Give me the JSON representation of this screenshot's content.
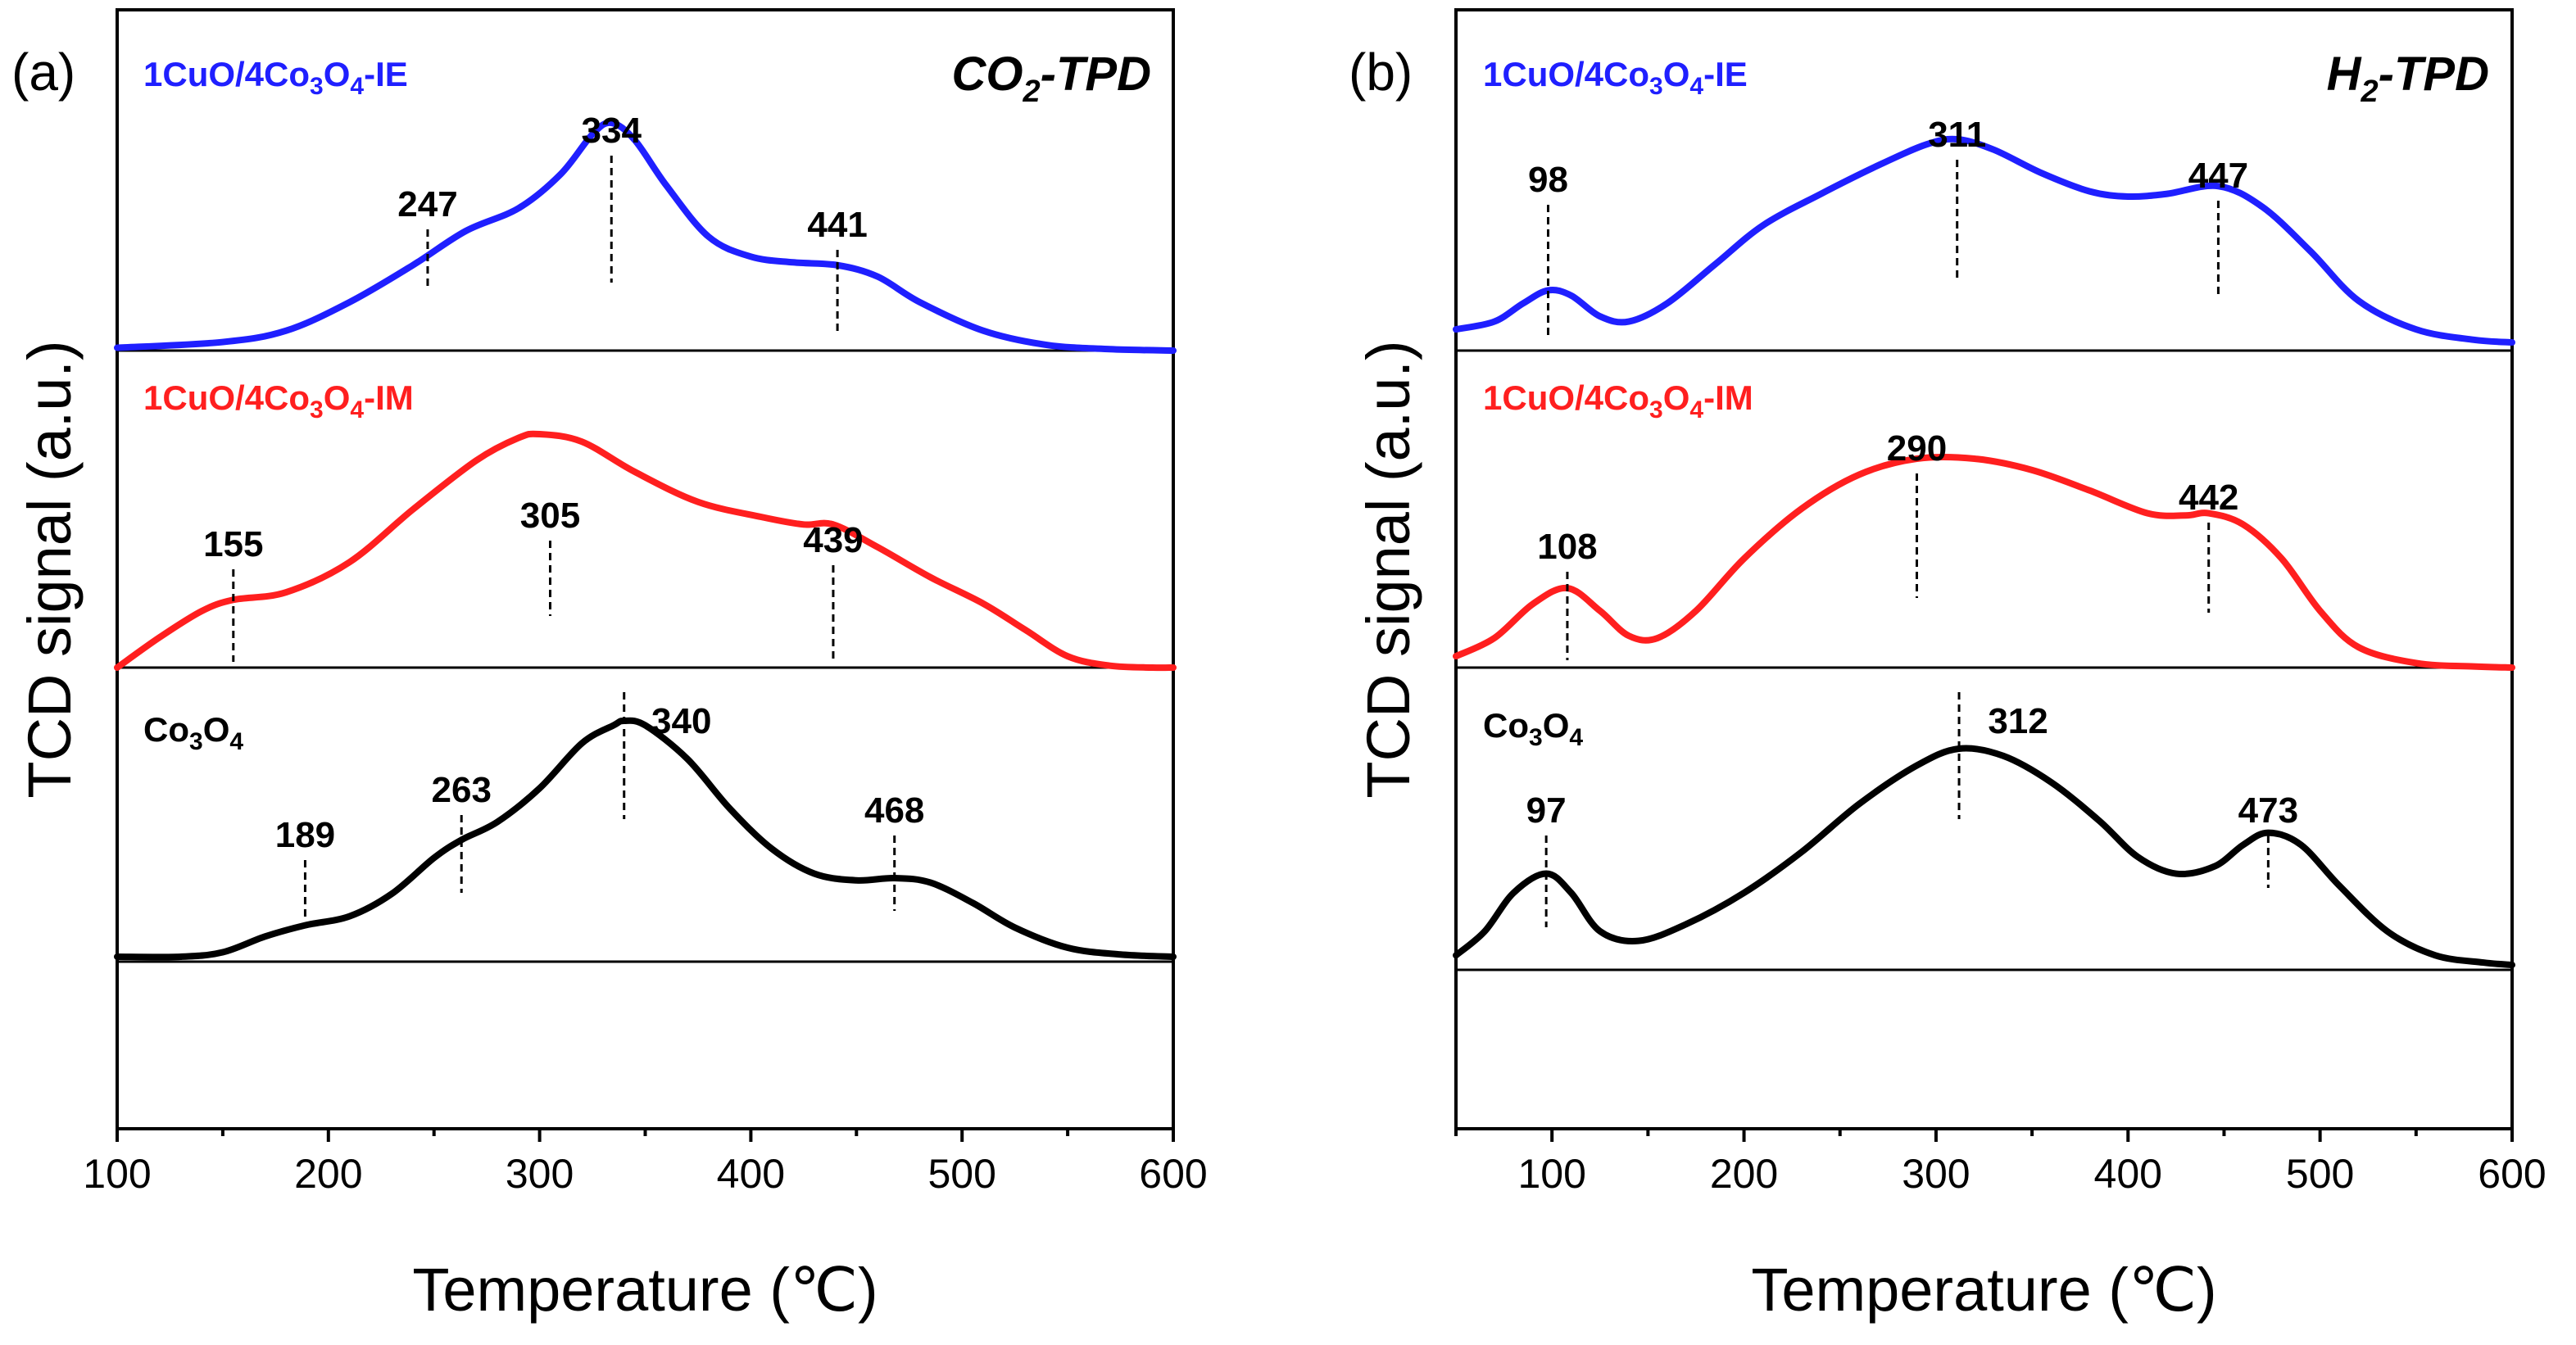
{
  "chart_data": [
    {
      "type": "line",
      "panel_label": "(a)",
      "title_prefix": "CO",
      "title_sub": "2",
      "title_suffix": "-TPD",
      "xlabel": "Temperature (℃)",
      "ylabel": "TCD signal (a.u.)",
      "xlim": [
        100,
        600
      ],
      "xticks": [
        "100",
        "200",
        "300",
        "400",
        "500",
        "600"
      ],
      "xtick_values": [
        100,
        200,
        300,
        400,
        500,
        600
      ],
      "series": [
        {
          "name": "1CuO/4Co3O4-IE",
          "label_parts": [
            "1CuO/4Co",
            "3",
            "O",
            "4",
            "-IE"
          ],
          "color": "#1f1fff",
          "x": [
            100,
            150,
            180,
            210,
            240,
            265,
            290,
            310,
            325,
            334,
            345,
            360,
            380,
            400,
            420,
            441,
            460,
            480,
            510,
            540,
            570,
            600
          ],
          "y": [
            0.01,
            0.03,
            0.07,
            0.17,
            0.3,
            0.42,
            0.5,
            0.62,
            0.76,
            0.8,
            0.74,
            0.58,
            0.4,
            0.33,
            0.31,
            0.3,
            0.26,
            0.17,
            0.07,
            0.02,
            0.005,
            0.0
          ],
          "peaks": [
            {
              "x": 247,
              "label": "247"
            },
            {
              "x": 334,
              "label": "334"
            },
            {
              "x": 441,
              "label": "441"
            }
          ]
        },
        {
          "name": "1CuO/4Co3O4-IM",
          "label_parts": [
            "1CuO/4Co",
            "3",
            "O",
            "4",
            "-IM"
          ],
          "color": "#ff1f1f",
          "x": [
            100,
            120,
            140,
            155,
            180,
            210,
            240,
            270,
            290,
            300,
            320,
            345,
            375,
            405,
            425,
            439,
            460,
            485,
            510,
            530,
            550,
            570,
            590,
            600
          ],
          "y": [
            0.0,
            0.08,
            0.15,
            0.18,
            0.2,
            0.28,
            0.42,
            0.55,
            0.61,
            0.62,
            0.6,
            0.52,
            0.44,
            0.4,
            0.38,
            0.38,
            0.32,
            0.24,
            0.17,
            0.1,
            0.03,
            0.005,
            0.0,
            0.0
          ],
          "peaks": [
            {
              "x": 155,
              "label": "155"
            },
            {
              "x": 305,
              "label": "305"
            },
            {
              "x": 439,
              "label": "439"
            }
          ]
        },
        {
          "name": "Co3O4",
          "label_parts": [
            "Co",
            "3",
            "O",
            "4",
            ""
          ],
          "color": "#000000",
          "x": [
            100,
            130,
            150,
            170,
            189,
            210,
            230,
            250,
            263,
            280,
            300,
            320,
            335,
            340,
            350,
            370,
            390,
            410,
            430,
            450,
            468,
            485,
            505,
            525,
            550,
            575,
            600
          ],
          "y": [
            0.0,
            0.0,
            0.02,
            0.09,
            0.14,
            0.18,
            0.28,
            0.44,
            0.52,
            0.6,
            0.75,
            0.95,
            1.03,
            1.05,
            1.03,
            0.88,
            0.66,
            0.48,
            0.37,
            0.34,
            0.35,
            0.33,
            0.24,
            0.13,
            0.04,
            0.01,
            0.0
          ],
          "peaks": [
            {
              "x": 189,
              "label": "189"
            },
            {
              "x": 263,
              "label": "263"
            },
            {
              "x": 340,
              "label": "340"
            },
            {
              "x": 468,
              "label": "468"
            }
          ]
        }
      ]
    },
    {
      "type": "line",
      "panel_label": "(b)",
      "title_prefix": "H",
      "title_sub": "2",
      "title_suffix": "-TPD",
      "xlabel": "Temperature (℃)",
      "ylabel": "TCD signal (a.u.)",
      "xlim": [
        50,
        600
      ],
      "xticks": [
        "100",
        "200",
        "300",
        "400",
        "500",
        "600"
      ],
      "xtick_values": [
        100,
        200,
        300,
        400,
        500,
        600
      ],
      "series": [
        {
          "name": "1CuO/4Co3O4-IE",
          "label_parts": [
            "1CuO/4Co",
            "3",
            "O",
            "4",
            "-IE"
          ],
          "color": "#1f1fff",
          "x": [
            50,
            70,
            85,
            98,
            110,
            125,
            140,
            160,
            185,
            210,
            240,
            270,
            295,
            311,
            330,
            355,
            380,
            400,
            420,
            447,
            470,
            495,
            520,
            550,
            580,
            600
          ],
          "y": [
            0.05,
            0.08,
            0.15,
            0.2,
            0.18,
            0.1,
            0.08,
            0.15,
            0.3,
            0.45,
            0.57,
            0.68,
            0.76,
            0.78,
            0.74,
            0.65,
            0.58,
            0.56,
            0.57,
            0.6,
            0.52,
            0.35,
            0.16,
            0.05,
            0.01,
            0.0
          ],
          "peaks": [
            {
              "x": 98,
              "label": "98"
            },
            {
              "x": 311,
              "label": "311"
            },
            {
              "x": 447,
              "label": "447"
            }
          ]
        },
        {
          "name": "1CuO/4Co3O4-IM",
          "label_parts": [
            "1CuO/4Co",
            "3",
            "O",
            "4",
            "-IM"
          ],
          "color": "#ff1f1f",
          "x": [
            50,
            70,
            90,
            108,
            125,
            140,
            155,
            175,
            200,
            230,
            260,
            290,
            320,
            350,
            380,
            410,
            430,
            442,
            460,
            480,
            500,
            520,
            550,
            580,
            600
          ],
          "y": [
            0.05,
            0.13,
            0.28,
            0.35,
            0.25,
            0.14,
            0.13,
            0.25,
            0.48,
            0.7,
            0.85,
            0.92,
            0.92,
            0.87,
            0.78,
            0.68,
            0.67,
            0.68,
            0.63,
            0.48,
            0.25,
            0.09,
            0.02,
            0.005,
            0.0
          ],
          "peaks": [
            {
              "x": 108,
              "label": "108"
            },
            {
              "x": 290,
              "label": "290"
            },
            {
              "x": 442,
              "label": "442"
            }
          ]
        },
        {
          "name": "Co3O4",
          "label_parts": [
            "Co",
            "3",
            "O",
            "4",
            ""
          ],
          "color": "#000000",
          "x": [
            50,
            65,
            80,
            97,
            110,
            125,
            145,
            170,
            200,
            230,
            260,
            290,
            312,
            335,
            360,
            385,
            405,
            425,
            445,
            460,
            473,
            490,
            510,
            535,
            560,
            585,
            600
          ],
          "y": [
            0.04,
            0.14,
            0.3,
            0.38,
            0.3,
            0.14,
            0.1,
            0.17,
            0.3,
            0.47,
            0.67,
            0.83,
            0.9,
            0.87,
            0.76,
            0.6,
            0.45,
            0.38,
            0.41,
            0.5,
            0.55,
            0.5,
            0.33,
            0.14,
            0.04,
            0.01,
            0.0
          ],
          "peaks": [
            {
              "x": 97,
              "label": "97"
            },
            {
              "x": 312,
              "label": "312"
            },
            {
              "x": 473,
              "label": "473"
            }
          ]
        }
      ]
    }
  ]
}
